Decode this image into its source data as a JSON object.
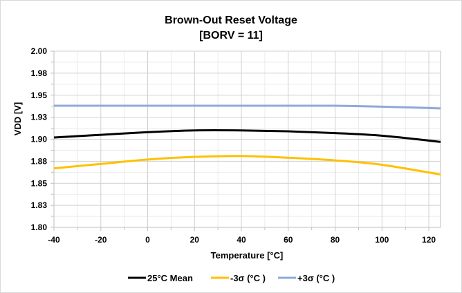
{
  "chart_data": {
    "type": "line",
    "title": "Brown-Out Reset Voltage",
    "subtitle": "[BORV = 11]",
    "xlabel": "Temperature [°C]",
    "ylabel": "VDD [V]",
    "xlim": [
      -40,
      125
    ],
    "ylim": [
      1.8,
      2.0
    ],
    "x_ticks": [
      -40,
      -20,
      0,
      20,
      40,
      60,
      80,
      100,
      120
    ],
    "x_tick_labels": [
      "-40",
      "-20",
      "0",
      "20",
      "40",
      "60",
      "80",
      "100",
      "120"
    ],
    "y_ticks": [
      1.8,
      1.825,
      1.85,
      1.875,
      1.9,
      1.925,
      1.95,
      1.975,
      2.0
    ],
    "y_tick_labels": [
      "1.80",
      "1.83",
      "1.85",
      "1.88",
      "1.90",
      "1.93",
      "1.95",
      "1.98",
      "2.00"
    ],
    "grid": true,
    "legend_position": "bottom",
    "x": [
      -40,
      -20,
      0,
      20,
      40,
      60,
      80,
      100,
      125
    ],
    "series": [
      {
        "name": "25°C Mean",
        "color": "#000000",
        "values": [
          1.902,
          1.905,
          1.908,
          1.91,
          1.91,
          1.909,
          1.907,
          1.904,
          1.897
        ]
      },
      {
        "name": "-3σ (°C )",
        "color": "#FFC000",
        "values": [
          1.867,
          1.872,
          1.877,
          1.88,
          1.881,
          1.879,
          1.876,
          1.871,
          1.86
        ]
      },
      {
        "name": "+3σ (°C )",
        "color": "#8EA9DB",
        "values": [
          1.938,
          1.938,
          1.938,
          1.938,
          1.938,
          1.938,
          1.938,
          1.937,
          1.935
        ]
      }
    ]
  }
}
